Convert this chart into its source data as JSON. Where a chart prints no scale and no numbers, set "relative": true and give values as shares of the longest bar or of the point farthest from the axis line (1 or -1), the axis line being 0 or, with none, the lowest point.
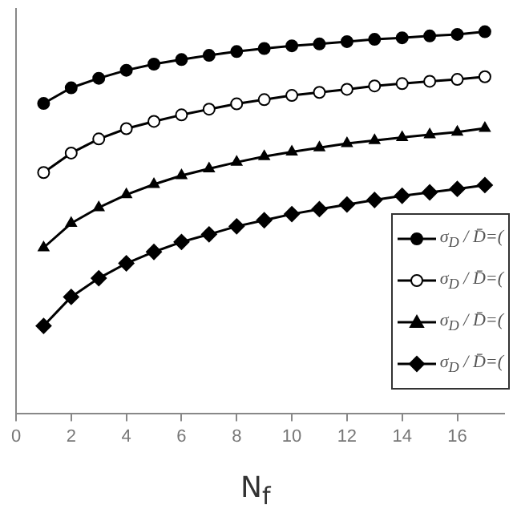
{
  "chart_data": {
    "type": "line",
    "xlabel": "N$_{f}$",
    "relative": true,
    "x": [
      1,
      2,
      3,
      4,
      5,
      6,
      7,
      8,
      9,
      10,
      11,
      12,
      13,
      14,
      15,
      16,
      17
    ],
    "xlim": [
      0,
      17.7
    ],
    "xticks": [
      0,
      2,
      4,
      6,
      8,
      10,
      12,
      14,
      16
    ],
    "grid": false,
    "legend": "bottom right",
    "line_style": "solid",
    "series": [
      {
        "name": "σ$_{D}$ / D̄=(",
        "color": "#000000",
        "marker": "circle",
        "values": [
          0.812,
          0.853,
          0.878,
          0.899,
          0.915,
          0.927,
          0.938,
          0.948,
          0.956,
          0.963,
          0.968,
          0.974,
          0.98,
          0.984,
          0.989,
          0.993,
          1
        ]
      },
      {
        "name": "σ$_{D}$ / D̄=(",
        "color": "#000000",
        "marker": "circle-open",
        "values": [
          0.631,
          0.682,
          0.719,
          0.746,
          0.765,
          0.782,
          0.797,
          0.811,
          0.822,
          0.833,
          0.841,
          0.849,
          0.858,
          0.864,
          0.87,
          0.875,
          0.882
        ]
      },
      {
        "name": "σ$_{D}$ / D̄=(",
        "color": "#000000",
        "marker": "triangle",
        "values": [
          0.434,
          0.498,
          0.539,
          0.573,
          0.6,
          0.623,
          0.641,
          0.658,
          0.673,
          0.685,
          0.696,
          0.707,
          0.715,
          0.723,
          0.73,
          0.737,
          0.747
        ]
      },
      {
        "name": "σ$_{D}$ / D̄=(",
        "color": "#000000",
        "marker": "diamond",
        "values": [
          0.229,
          0.305,
          0.354,
          0.393,
          0.423,
          0.449,
          0.469,
          0.49,
          0.506,
          0.522,
          0.535,
          0.547,
          0.559,
          0.57,
          0.579,
          0.588,
          0.598
        ]
      }
    ]
  }
}
